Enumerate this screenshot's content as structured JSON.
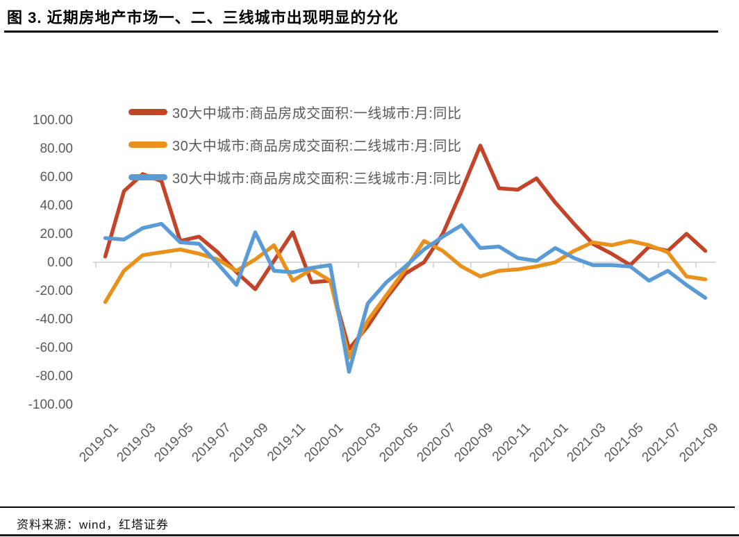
{
  "title": "图 3. 近期房地产市场一、二、三线城市出现明显的分化",
  "source_note": "资料来源：wind，红塔证券",
  "colors": {
    "first_tier": "#c2452a",
    "second_tier": "#e8911c",
    "third_tier": "#5b9bd5",
    "zero_line": "#d9d9d9",
    "axis_text": "#595959",
    "title_text": "#000000"
  },
  "chart_data": {
    "type": "line",
    "title": "",
    "xlabel": "",
    "ylabel": "",
    "ylim": [
      -100,
      100
    ],
    "grid": "zero-line-only",
    "legend_position": "top-left-inside",
    "y_tick_labels": [
      "100.00",
      "80.00",
      "60.00",
      "40.00",
      "20.00",
      "0.00",
      "-20.00",
      "-40.00",
      "-60.00",
      "-80.00",
      "-100.00"
    ],
    "y_tick_values": [
      100,
      80,
      60,
      40,
      20,
      0,
      -20,
      -40,
      -60,
      -80,
      -100
    ],
    "x": [
      "2019-01",
      "2019-02",
      "2019-03",
      "2019-04",
      "2019-05",
      "2019-06",
      "2019-07",
      "2019-08",
      "2019-09",
      "2019-10",
      "2019-11",
      "2019-12",
      "2020-01",
      "2020-02",
      "2020-03",
      "2020-04",
      "2020-05",
      "2020-06",
      "2020-07",
      "2020-08",
      "2020-09",
      "2020-10",
      "2020-11",
      "2020-12",
      "2021-01",
      "2021-02",
      "2021-03",
      "2021-04",
      "2021-05",
      "2021-06",
      "2021-07",
      "2021-08",
      "2021-09"
    ],
    "x_tick_labels": [
      "2019-01",
      "2019-03",
      "2019-05",
      "2019-07",
      "2019-09",
      "2019-11",
      "2020-01",
      "2020-03",
      "2020-05",
      "2020-07",
      "2020-09",
      "2020-11",
      "2021-01",
      "2021-03",
      "2021-05",
      "2021-07",
      "2021-09"
    ],
    "series": [
      {
        "name": "30大中城市:商品房成交面积:一线城市:月:同比",
        "color_key": "first_tier",
        "values": [
          4,
          50,
          62,
          57,
          15,
          18,
          7,
          -7,
          -19,
          1,
          21,
          -14,
          -13,
          -61,
          -45,
          -25,
          -8,
          0,
          20,
          50,
          82,
          52,
          51,
          59,
          42,
          27,
          13,
          6,
          -2,
          11,
          8,
          20,
          8
        ]
      },
      {
        "name": "30大中城市:商品房成交面积:二线城市:月:同比",
        "color_key": "second_tier",
        "values": [
          -28,
          -6,
          5,
          7,
          9,
          6,
          2,
          -6,
          2,
          12,
          -13,
          -5,
          -13,
          -67,
          -41,
          -23,
          -5,
          15,
          8,
          -3,
          -10,
          -6,
          -5,
          -3,
          0,
          8,
          14,
          12,
          15,
          12,
          7,
          -10,
          -12
        ]
      },
      {
        "name": "30大中城市:商品房成交面积:三线城市:月:同比",
        "color_key": "third_tier",
        "values": [
          17,
          16,
          24,
          27,
          14,
          13,
          -1,
          -16,
          21,
          -6,
          -7,
          -4,
          -2,
          -77,
          -29,
          -14,
          -3,
          9,
          18,
          26,
          10,
          11,
          3,
          1,
          10,
          3,
          -2,
          -2,
          -3,
          -13,
          -6,
          -16,
          -25
        ]
      }
    ]
  }
}
